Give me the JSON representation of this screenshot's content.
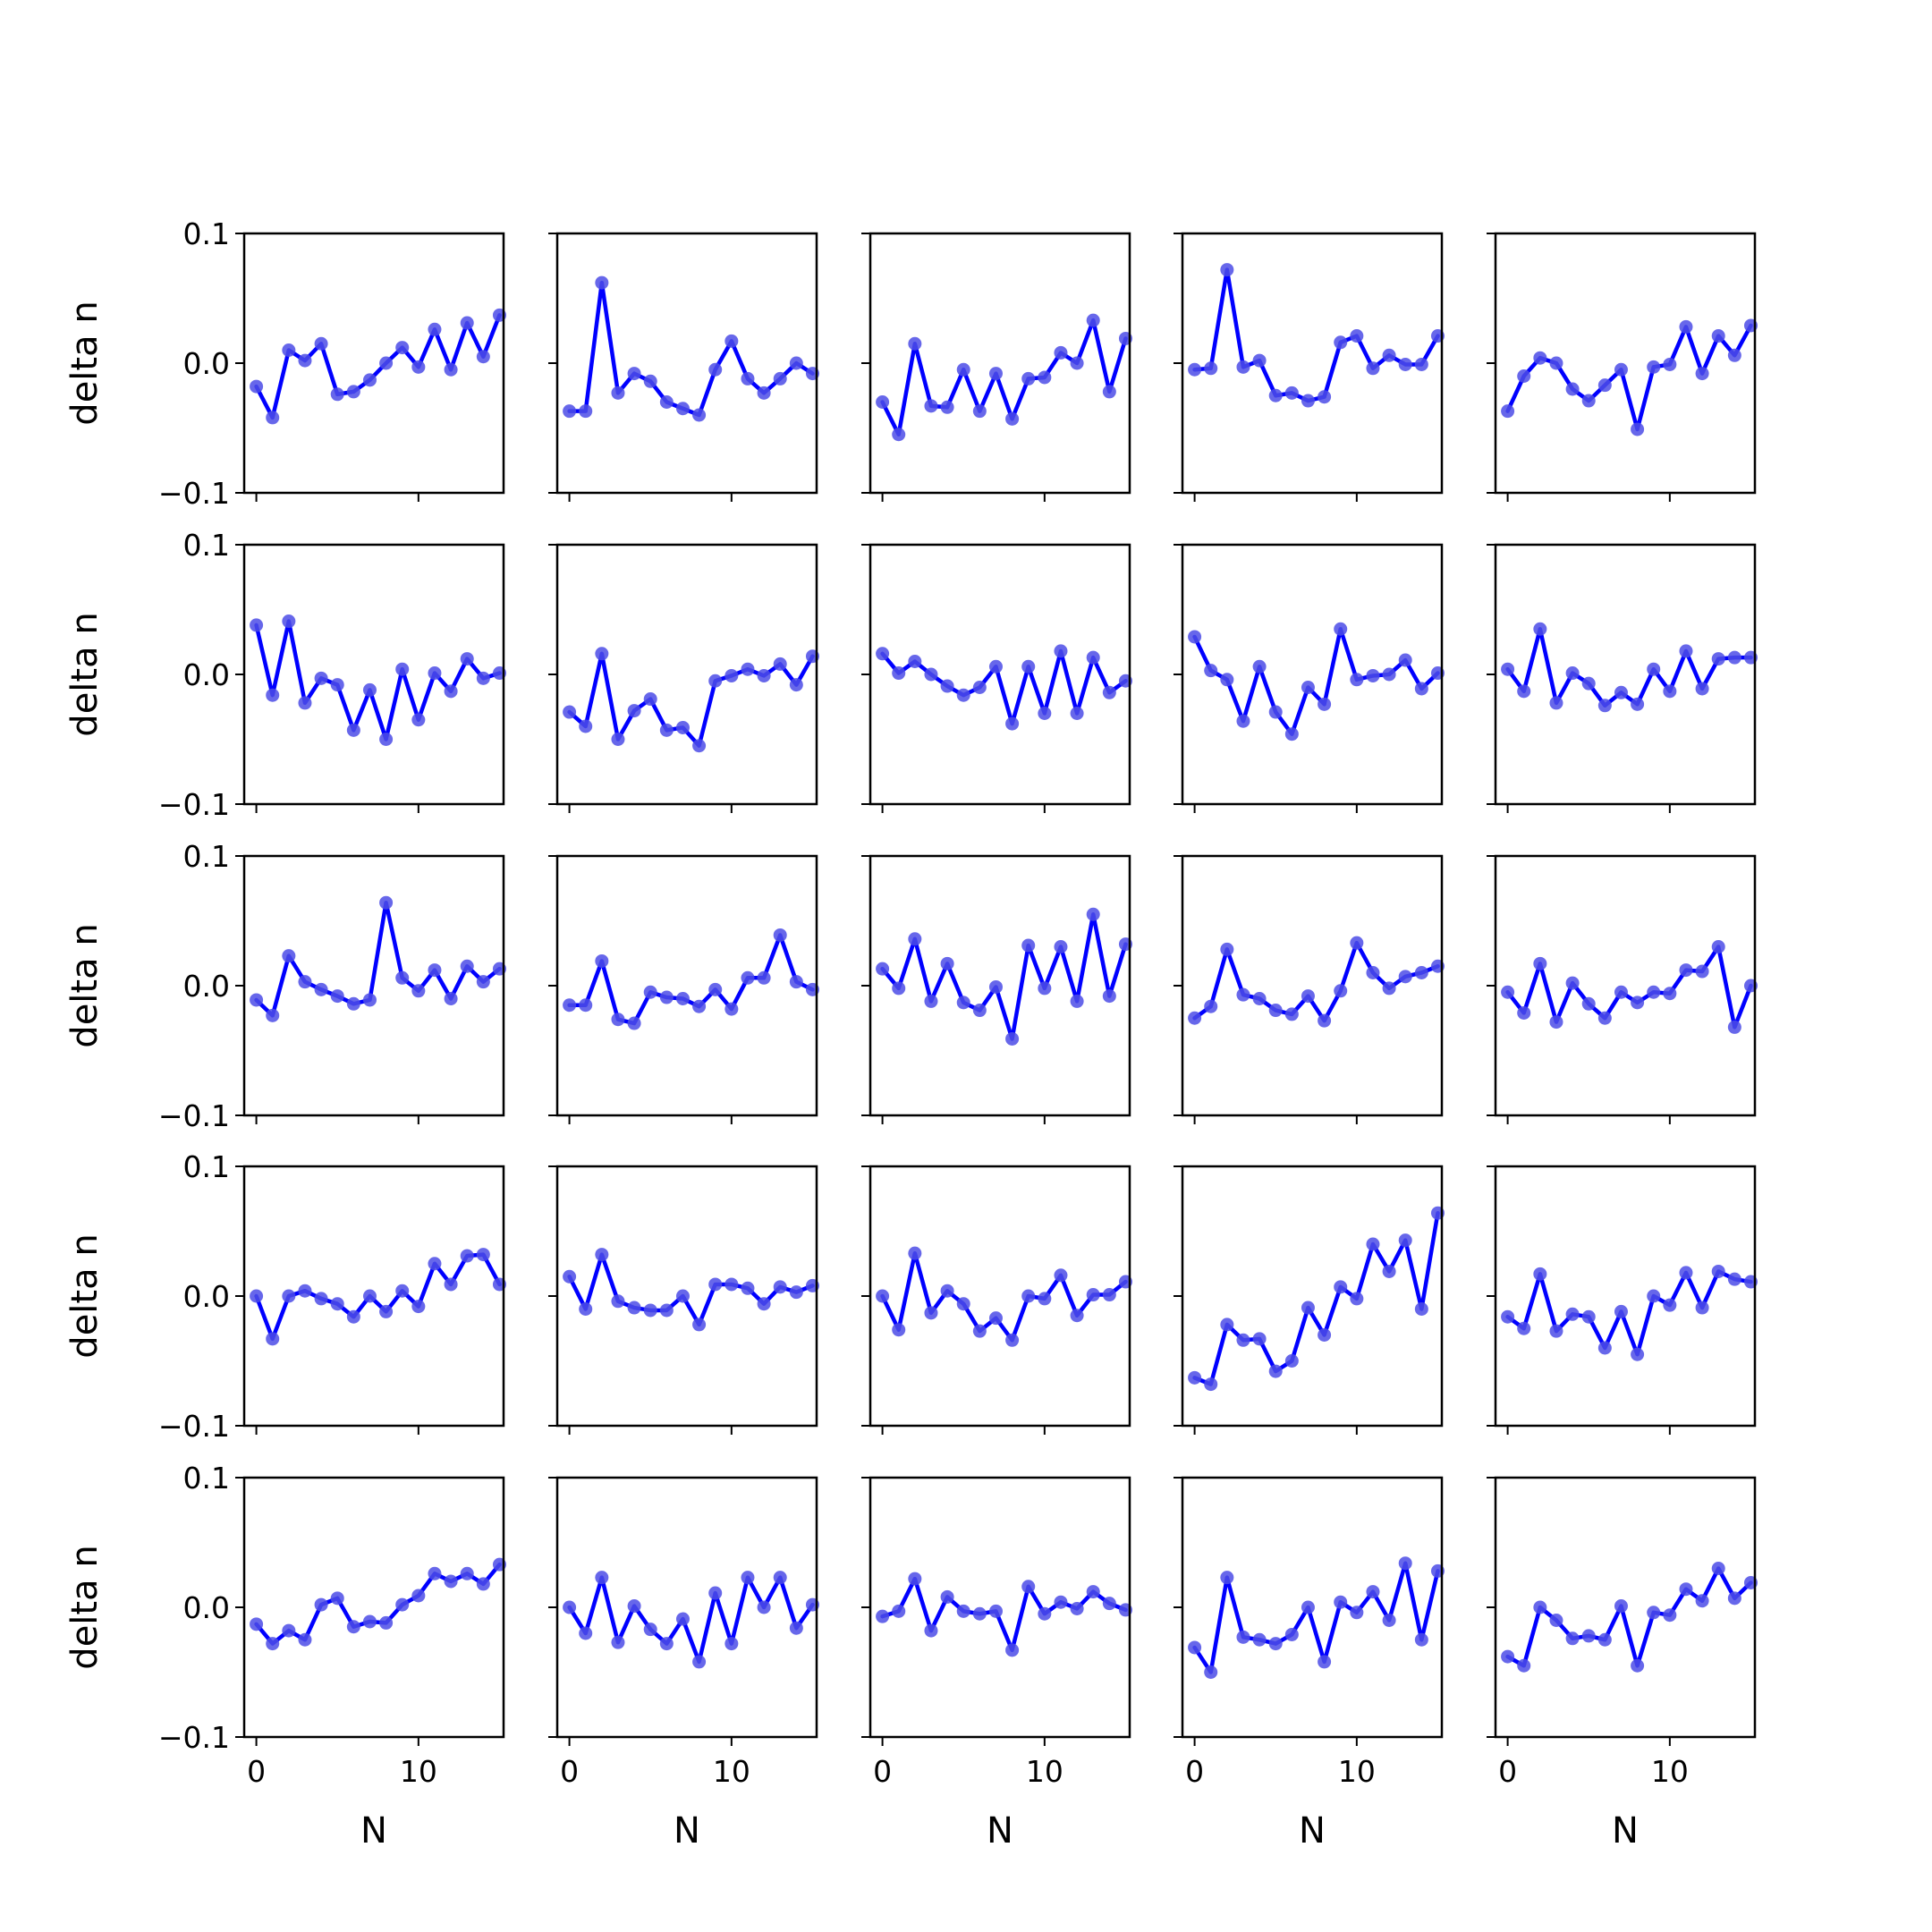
{
  "chart_data": {
    "type": "line",
    "layout": {
      "rows": 5,
      "cols": 5,
      "sharex": true,
      "sharey": true
    },
    "xlabel": "N",
    "ylabel": "delta n",
    "x": [
      0,
      1,
      2,
      3,
      4,
      5,
      6,
      7,
      8,
      9,
      10,
      11,
      12,
      13,
      14,
      15
    ],
    "xlim": [
      -0.75,
      15.25
    ],
    "ylim": [
      -0.1,
      0.1
    ],
    "xticks": [
      0,
      10
    ],
    "xtick_labels": [
      "0",
      "10"
    ],
    "yticks": [
      -0.1,
      0.0,
      0.1
    ],
    "ytick_labels": [
      "−0.1",
      "0.0",
      "0.1"
    ],
    "grid": false,
    "line_color": "#0000ff",
    "marker_color": "#4c4ce6",
    "panels": [
      {
        "values": [
          -0.018,
          -0.042,
          0.01,
          0.002,
          0.015,
          -0.024,
          -0.022,
          -0.013,
          0.0,
          0.012,
          -0.003,
          0.026,
          -0.005,
          0.031,
          0.005,
          0.037
        ]
      },
      {
        "values": [
          -0.037,
          -0.037,
          0.062,
          -0.023,
          -0.008,
          -0.014,
          -0.03,
          -0.035,
          -0.04,
          -0.005,
          0.017,
          -0.012,
          -0.023,
          -0.012,
          0.0,
          -0.008
        ]
      },
      {
        "values": [
          -0.03,
          -0.055,
          0.015,
          -0.033,
          -0.034,
          -0.005,
          -0.037,
          -0.008,
          -0.043,
          -0.012,
          -0.011,
          0.008,
          0.0,
          0.033,
          -0.022,
          0.019
        ]
      },
      {
        "values": [
          -0.005,
          -0.004,
          0.072,
          -0.003,
          0.002,
          -0.025,
          -0.023,
          -0.029,
          -0.026,
          0.016,
          0.021,
          -0.004,
          0.006,
          -0.001,
          -0.001,
          0.021
        ]
      },
      {
        "values": [
          -0.037,
          -0.01,
          0.004,
          0.0,
          -0.02,
          -0.029,
          -0.017,
          -0.005,
          -0.051,
          -0.003,
          -0.001,
          0.028,
          -0.008,
          0.021,
          0.006,
          0.029
        ]
      },
      {
        "values": [
          0.038,
          -0.016,
          0.041,
          -0.022,
          -0.003,
          -0.008,
          -0.043,
          -0.012,
          -0.05,
          0.004,
          -0.035,
          0.001,
          -0.013,
          0.012,
          -0.003,
          0.001
        ]
      },
      {
        "values": [
          -0.029,
          -0.04,
          0.016,
          -0.05,
          -0.028,
          -0.019,
          -0.043,
          -0.041,
          -0.055,
          -0.005,
          -0.001,
          0.004,
          -0.001,
          0.008,
          -0.008,
          0.014
        ]
      },
      {
        "values": [
          0.016,
          0.001,
          0.01,
          0.0,
          -0.009,
          -0.016,
          -0.01,
          0.006,
          -0.038,
          0.006,
          -0.03,
          0.018,
          -0.03,
          0.013,
          -0.014,
          -0.005
        ]
      },
      {
        "values": [
          0.029,
          0.003,
          -0.004,
          -0.036,
          0.006,
          -0.029,
          -0.046,
          -0.01,
          -0.023,
          0.035,
          -0.004,
          -0.001,
          0.0,
          0.011,
          -0.011,
          0.001
        ]
      },
      {
        "values": [
          0.004,
          -0.013,
          0.035,
          -0.022,
          0.001,
          -0.007,
          -0.024,
          -0.014,
          -0.023,
          0.004,
          -0.013,
          0.018,
          -0.011,
          0.012,
          0.013,
          0.013
        ]
      },
      {
        "values": [
          -0.011,
          -0.023,
          0.023,
          0.003,
          -0.003,
          -0.008,
          -0.014,
          -0.011,
          0.064,
          0.006,
          -0.004,
          0.012,
          -0.01,
          0.015,
          0.003,
          0.013
        ]
      },
      {
        "values": [
          -0.015,
          -0.015,
          0.019,
          -0.026,
          -0.029,
          -0.005,
          -0.009,
          -0.01,
          -0.016,
          -0.003,
          -0.018,
          0.006,
          0.006,
          0.039,
          0.003,
          -0.003
        ]
      },
      {
        "values": [
          0.013,
          -0.002,
          0.036,
          -0.012,
          0.017,
          -0.013,
          -0.019,
          -0.001,
          -0.041,
          0.031,
          -0.002,
          0.03,
          -0.012,
          0.055,
          -0.008,
          0.032
        ]
      },
      {
        "values": [
          -0.025,
          -0.016,
          0.028,
          -0.007,
          -0.01,
          -0.019,
          -0.022,
          -0.008,
          -0.027,
          -0.004,
          0.033,
          0.01,
          -0.002,
          0.007,
          0.01,
          0.015
        ]
      },
      {
        "values": [
          -0.005,
          -0.021,
          0.017,
          -0.028,
          0.002,
          -0.014,
          -0.025,
          -0.005,
          -0.013,
          -0.005,
          -0.006,
          0.012,
          0.011,
          0.03,
          -0.032,
          0.0
        ]
      },
      {
        "values": [
          0.0,
          -0.033,
          0.0,
          0.004,
          -0.002,
          -0.006,
          -0.016,
          0.0,
          -0.012,
          0.004,
          -0.008,
          0.025,
          0.009,
          0.031,
          0.032,
          0.009
        ]
      },
      {
        "values": [
          0.015,
          -0.01,
          0.032,
          -0.004,
          -0.009,
          -0.011,
          -0.011,
          0.0,
          -0.022,
          0.009,
          0.009,
          0.006,
          -0.006,
          0.007,
          0.003,
          0.008
        ]
      },
      {
        "values": [
          0.0,
          -0.026,
          0.033,
          -0.013,
          0.004,
          -0.006,
          -0.027,
          -0.017,
          -0.034,
          0.0,
          -0.002,
          0.016,
          -0.015,
          0.001,
          0.001,
          0.011
        ]
      },
      {
        "values": [
          -0.063,
          -0.068,
          -0.022,
          -0.034,
          -0.033,
          -0.058,
          -0.05,
          -0.009,
          -0.03,
          0.007,
          -0.002,
          0.04,
          0.019,
          0.043,
          -0.01,
          0.064
        ]
      },
      {
        "values": [
          -0.016,
          -0.025,
          0.017,
          -0.027,
          -0.014,
          -0.016,
          -0.04,
          -0.012,
          -0.045,
          0.0,
          -0.007,
          0.018,
          -0.009,
          0.019,
          0.013,
          0.011
        ]
      },
      {
        "values": [
          -0.013,
          -0.028,
          -0.018,
          -0.025,
          0.002,
          0.007,
          -0.015,
          -0.011,
          -0.012,
          0.002,
          0.009,
          0.026,
          0.02,
          0.026,
          0.018,
          0.033
        ]
      },
      {
        "values": [
          0.0,
          -0.02,
          0.023,
          -0.027,
          0.001,
          -0.017,
          -0.028,
          -0.009,
          -0.042,
          0.011,
          -0.028,
          0.023,
          0.0,
          0.023,
          -0.016,
          0.002
        ]
      },
      {
        "values": [
          -0.007,
          -0.003,
          0.022,
          -0.018,
          0.008,
          -0.003,
          -0.005,
          -0.003,
          -0.033,
          0.016,
          -0.005,
          0.004,
          -0.001,
          0.012,
          0.003,
          -0.002
        ]
      },
      {
        "values": [
          -0.031,
          -0.05,
          0.023,
          -0.023,
          -0.025,
          -0.028,
          -0.021,
          0.0,
          -0.042,
          0.004,
          -0.004,
          0.012,
          -0.01,
          0.034,
          -0.025,
          0.028
        ]
      },
      {
        "values": [
          -0.038,
          -0.045,
          0.0,
          -0.01,
          -0.024,
          -0.022,
          -0.025,
          0.001,
          -0.045,
          -0.004,
          -0.006,
          0.014,
          0.005,
          0.03,
          0.007,
          0.019
        ]
      }
    ]
  }
}
